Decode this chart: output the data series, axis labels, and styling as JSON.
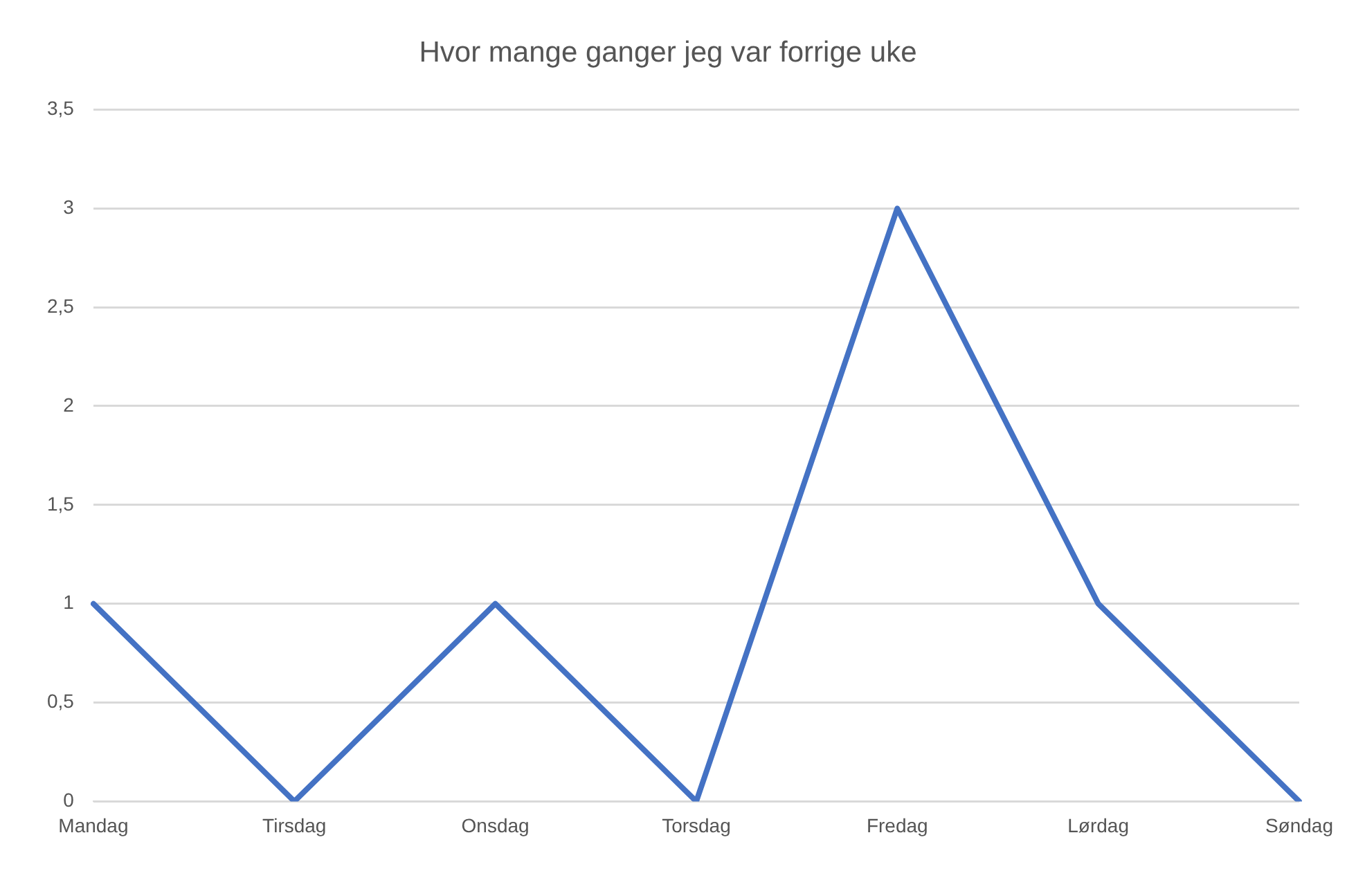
{
  "chart_data": {
    "type": "line",
    "title": "Hvor mange ganger jeg var forrige uke",
    "categories": [
      "Mandag",
      "Tirsdag",
      "Onsdag",
      "Torsdag",
      "Fredag",
      "Lørdag",
      "Søndag"
    ],
    "series": [
      {
        "color": "#4472c4",
        "values": [
          1,
          0,
          1,
          0,
          3,
          1,
          0
        ]
      }
    ],
    "ylim": [
      0,
      3.5
    ],
    "yticks": [
      0,
      {
        "value": 0.5,
        "label": "0,5"
      },
      1,
      {
        "value": 1.5,
        "label": "1,5"
      },
      2,
      {
        "value": 2.5,
        "label": "2,5"
      },
      3,
      {
        "value": 3.5,
        "label": "3,5"
      }
    ],
    "grid": "y",
    "legend": false,
    "marker": "none",
    "line_style": "solid"
  }
}
